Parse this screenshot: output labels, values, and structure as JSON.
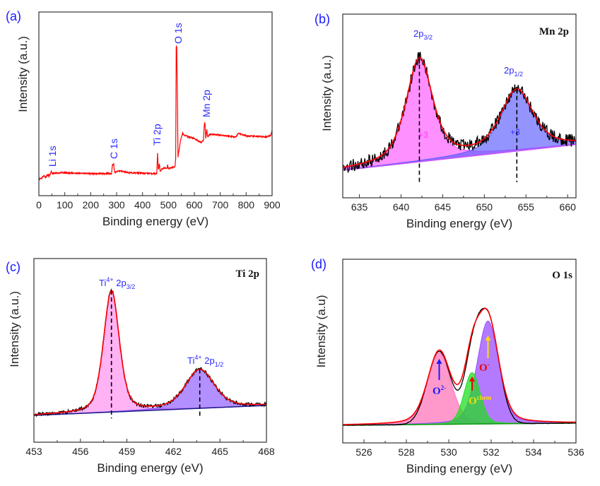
{
  "colors": {
    "panel_label": "#1a1aff",
    "annotation": "#2a2aff",
    "survey": "#ff0000",
    "experimental": "#000000",
    "fit": "#ff0000"
  },
  "chart_data": [
    {
      "panel_label": "(a)",
      "type": "line",
      "title": "",
      "xlabel": "Binding energy (eV)",
      "ylabel": "Intensity (a.u.)",
      "xlim": [
        0,
        900
      ],
      "xticks": [
        "0",
        "100",
        "200",
        "300",
        "400",
        "500",
        "600",
        "700",
        "800",
        "900"
      ],
      "ylim": [
        0,
        100
      ],
      "series": [
        {
          "color": "#ff0000",
          "points": [
            [
              0,
              9
            ],
            [
              10,
              9.5
            ],
            [
              20,
              11
            ],
            [
              25,
              10
            ],
            [
              35,
              11.5
            ],
            [
              40,
              10.5
            ],
            [
              48,
              13
            ],
            [
              52,
              12
            ],
            [
              80,
              12.5
            ],
            [
              200,
              12
            ],
            [
              280,
              12
            ],
            [
              284,
              17
            ],
            [
              289,
              17
            ],
            [
              292,
              12.5
            ],
            [
              310,
              13.5
            ],
            [
              350,
              12.5
            ],
            [
              455,
              12
            ],
            [
              458,
              23
            ],
            [
              461,
              14
            ],
            [
              465,
              17
            ],
            [
              468,
              13.5
            ],
            [
              480,
              15
            ],
            [
              495,
              15
            ],
            [
              497,
              17
            ],
            [
              499,
              15
            ],
            [
              525,
              15.5
            ],
            [
              528,
              20
            ],
            [
              530,
              81
            ],
            [
              532,
              81
            ],
            [
              534,
              60
            ],
            [
              537,
              21
            ],
            [
              540,
              24
            ],
            [
              548,
              31
            ],
            [
              555,
              34
            ],
            [
              560,
              33
            ],
            [
              600,
              31
            ],
            [
              625,
              29
            ],
            [
              635,
              30
            ],
            [
              638,
              38
            ],
            [
              641,
              40
            ],
            [
              644,
              31
            ],
            [
              648,
              36
            ],
            [
              651,
              32
            ],
            [
              660,
              33.5
            ],
            [
              700,
              33
            ],
            [
              760,
              32
            ],
            [
              770,
              34
            ],
            [
              800,
              32.5
            ],
            [
              880,
              32
            ],
            [
              895,
              33
            ],
            [
              900,
              35
            ]
          ]
        }
      ],
      "annotations": [
        {
          "text": "Li 1s",
          "x": 55
        },
        {
          "text": "C 1s",
          "x": 287
        },
        {
          "text": "Ti 2p",
          "x": 458
        },
        {
          "text": "O 1s",
          "x": 531
        },
        {
          "text": "Mn 2p",
          "x": 642
        }
      ]
    },
    {
      "panel_label": "(b)",
      "type": "line",
      "title": "Mn 2p",
      "xlabel": "Binding energy (eV)",
      "ylabel": "Intensity (a.u.)",
      "xlim": [
        633,
        661
      ],
      "xticks": [
        "635",
        "640",
        "645",
        "650",
        "655",
        "660"
      ],
      "ylim": [
        0,
        100
      ],
      "background": [
        15,
        29
      ],
      "components": [
        {
          "center": 642.2,
          "height": 56,
          "hwhm": 1.9,
          "eta": 0.6,
          "color": "#ff55ff",
          "label": {
            "main": "2p",
            "sub": "3/2"
          },
          "state": "+3",
          "state_color": "#ff33ff"
        },
        {
          "center": 653.9,
          "height": 33,
          "hwhm": 2.3,
          "eta": 0.6,
          "color": "#5a5aff",
          "label": {
            "main": "2p",
            "sub": "1/2"
          },
          "state": "+3",
          "state_color": "#3333ff"
        }
      ]
    },
    {
      "panel_label": "(c)",
      "type": "line",
      "title": "Ti 2p",
      "xlabel": "Binding energy (eV)",
      "ylabel": "Intensity (a.u.)",
      "xlim": [
        453,
        468
      ],
      "xticks": [
        "453",
        "456",
        "459",
        "462",
        "465",
        "468"
      ],
      "ylim": [
        0,
        100
      ],
      "background": [
        14.6,
        20
      ],
      "components": [
        {
          "center": 458.0,
          "height": 66,
          "hwhm": 0.6,
          "eta": 0.4,
          "color": "#ff88ee",
          "label": {
            "main": "Ti",
            "sup": "4+",
            "mid": " 2p",
            "sub": "3/2"
          }
        },
        {
          "center": 463.7,
          "height": 21,
          "hwhm": 1.1,
          "eta": 0.4,
          "color": "#8a55ff",
          "label": {
            "main": "Ti",
            "sup": "4+",
            "mid": " 2p",
            "sub": "1/2"
          }
        }
      ]
    },
    {
      "panel_label": "(d)",
      "type": "line",
      "title": "O 1s",
      "xlabel": "Binding energy (eV)",
      "ylabel": "Intensity (a.u)",
      "xlim": [
        525,
        536
      ],
      "xticks": [
        "526",
        "528",
        "530",
        "532",
        "534",
        "536"
      ],
      "ylim": [
        0,
        100
      ],
      "background": [
        9.6,
        10.8
      ],
      "components": [
        {
          "center": 529.55,
          "height": 39,
          "hwhm": 0.65,
          "eta": 0.3,
          "color": "#ff77bb",
          "label": {
            "main": "O",
            "sup": "2-"
          },
          "label_color": "#1a1aff"
        },
        {
          "center": 531.85,
          "height": 56,
          "hwhm": 0.6,
          "eta": 0.3,
          "color": "#9a4dff",
          "label": {
            "main": "O",
            "sup": "chem"
          },
          "label_color": "#ffdd00"
        },
        {
          "center": 531.1,
          "height": 28,
          "hwhm": 0.45,
          "eta": 0.2,
          "color": "#22dd22",
          "label": {
            "main": "O",
            "sup": "-"
          },
          "label_color": "#ee0000"
        }
      ]
    }
  ]
}
